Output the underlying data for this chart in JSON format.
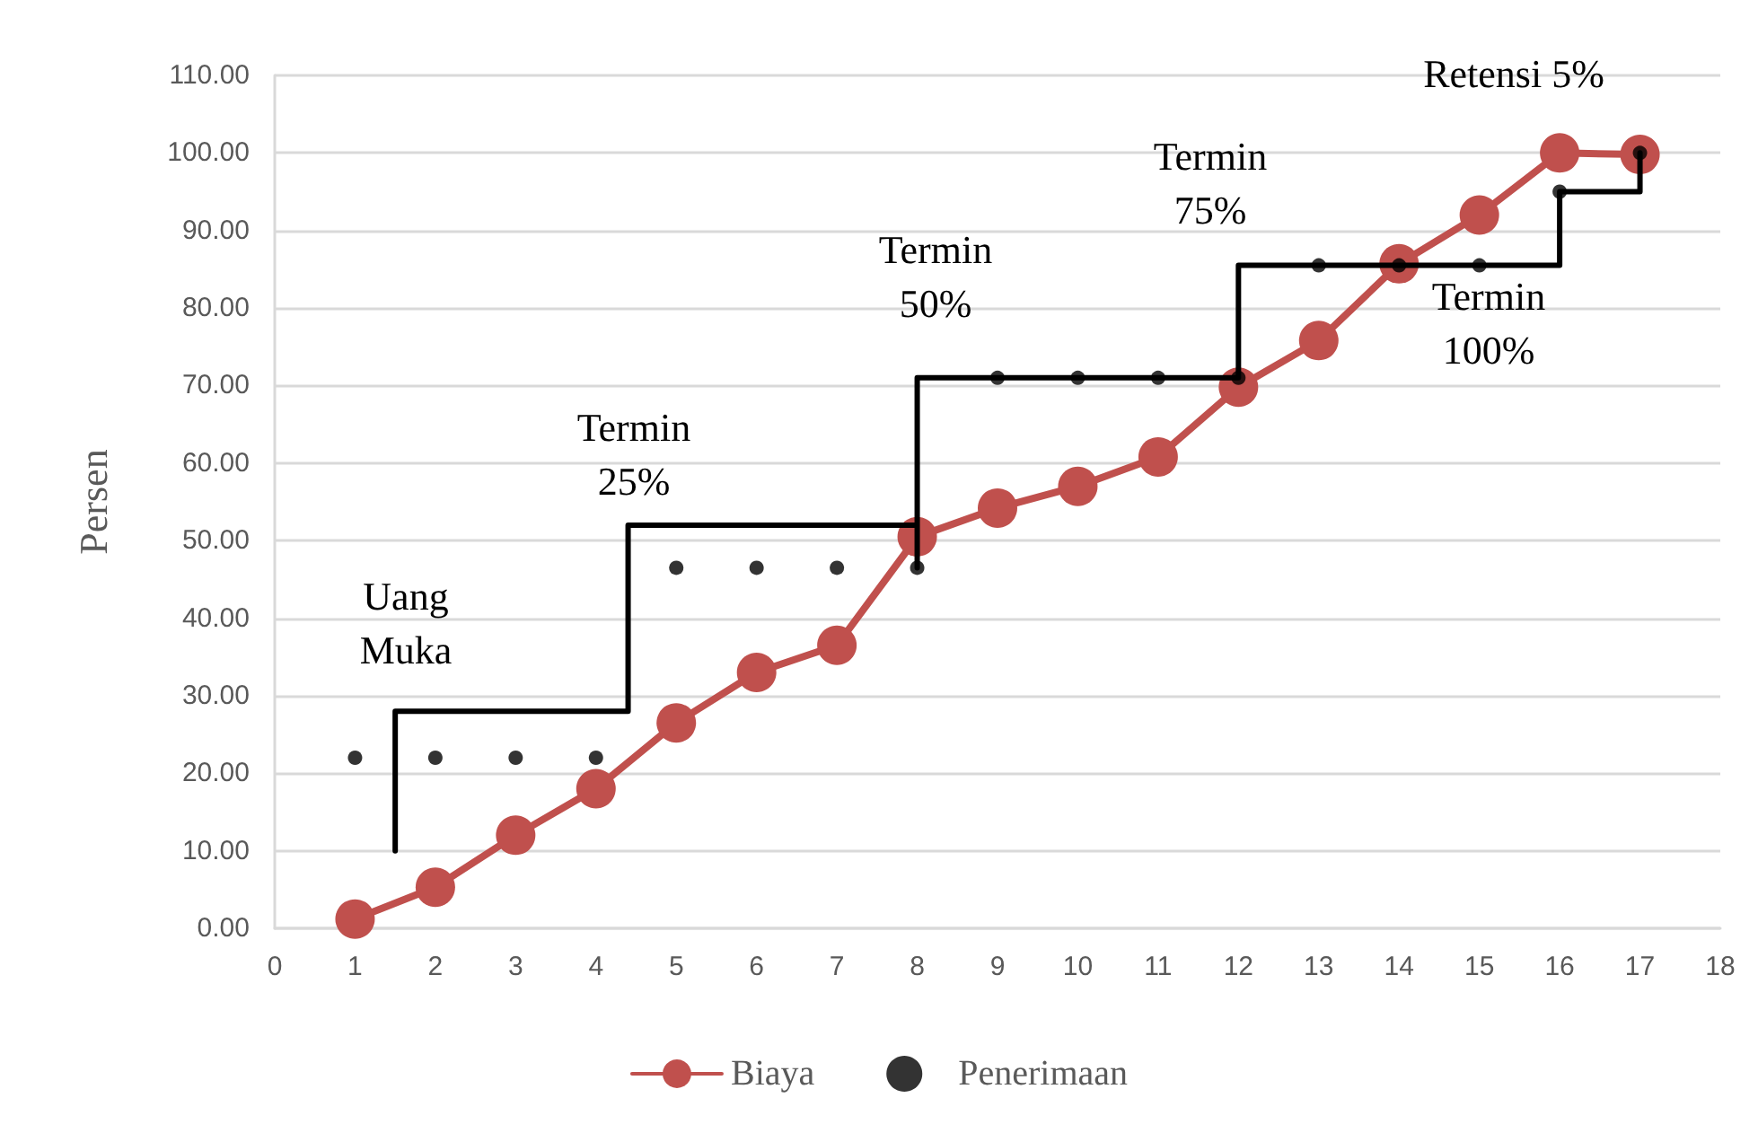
{
  "chart_data": {
    "type": "line",
    "ylabel": "Persen",
    "xlim": [
      0,
      18
    ],
    "xticks": [
      0,
      1,
      2,
      3,
      4,
      5,
      6,
      7,
      8,
      9,
      10,
      11,
      12,
      13,
      14,
      15,
      16,
      17,
      18
    ],
    "ylim": [
      0,
      110
    ],
    "yticks": [
      {
        "value": 0,
        "label": "0.00"
      },
      {
        "value": 10,
        "label": "10.00"
      },
      {
        "value": 20,
        "label": "20.00"
      },
      {
        "value": 30,
        "label": "30.00"
      },
      {
        "value": 40,
        "label": "40.00"
      },
      {
        "value": 50,
        "label": "50.00"
      },
      {
        "value": 60,
        "label": "60.00"
      },
      {
        "value": 70,
        "label": "70.00"
      },
      {
        "value": 80,
        "label": "80.00"
      },
      {
        "value": 90,
        "label": "90.00"
      },
      {
        "value": 100,
        "label": "100.00"
      },
      {
        "value": 110,
        "label": "110.00"
      }
    ],
    "grid": "y",
    "legend": "bottom",
    "series": [
      {
        "name": "Biaya",
        "type": "line",
        "color": "#c0504d",
        "marker": "circle",
        "line_style": "solid",
        "x": [
          1,
          2,
          3,
          4,
          5,
          6,
          7,
          8,
          9,
          10,
          11,
          12,
          13,
          14,
          15,
          16,
          17
        ],
        "values": [
          1.2,
          5.3,
          12,
          18,
          26.5,
          33,
          36.5,
          50.5,
          54.2,
          57,
          60.8,
          69.8,
          75.8,
          85.7,
          92,
          100,
          99.8
        ]
      },
      {
        "name": "Penerimaan",
        "type": "scatter",
        "color": "#000000",
        "marker": "circle",
        "x": [
          1,
          2,
          3,
          4,
          5,
          6,
          7,
          8,
          9,
          10,
          11,
          12,
          13,
          14,
          15,
          16,
          17
        ],
        "values": [
          22,
          22,
          22,
          22,
          46.5,
          46.5,
          46.5,
          46.5,
          71,
          71,
          71,
          71,
          85.5,
          85.5,
          85.5,
          95,
          100
        ]
      },
      {
        "type": "line",
        "color": "#000000",
        "marker": "none",
        "line_style": "solid",
        "x": [
          1.5,
          1.5,
          4.4,
          4.4,
          8,
          8,
          8,
          12,
          12,
          16,
          16,
          17,
          17
        ],
        "values": [
          10,
          28,
          28,
          52,
          52,
          46.5,
          71,
          71,
          85.5,
          85.5,
          95,
          95,
          100
        ]
      }
    ],
    "annotations": [
      "Uang\nMuka",
      "Termin\n25%",
      "Termin\n50%",
      "Termin\n75%",
      "Termin\n100%",
      "Retensi 5%"
    ]
  }
}
